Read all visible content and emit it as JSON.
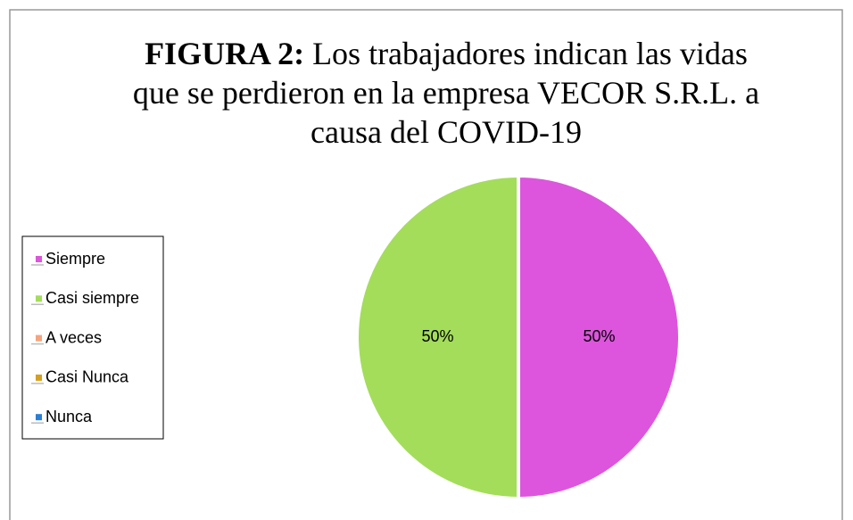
{
  "chart_data": {
    "type": "pie",
    "title_prefix": "FIGURA 2:",
    "title": "Los trabajadores indican las vidas que se perdieron en la empresa VECOR S.R.L. a causa del COVID-19",
    "categories": [
      "Siempre",
      "Casi siempre",
      "A veces",
      "Casi Nunca",
      "Nunca"
    ],
    "values": [
      50,
      50,
      0,
      0,
      0
    ],
    "value_labels": [
      "50%",
      "50%",
      null,
      null,
      null
    ],
    "colors": [
      "#dd55dd",
      "#a3dd5a",
      "#f4a47c",
      "#d4a020",
      "#2a7fd4"
    ],
    "legend": "left"
  }
}
